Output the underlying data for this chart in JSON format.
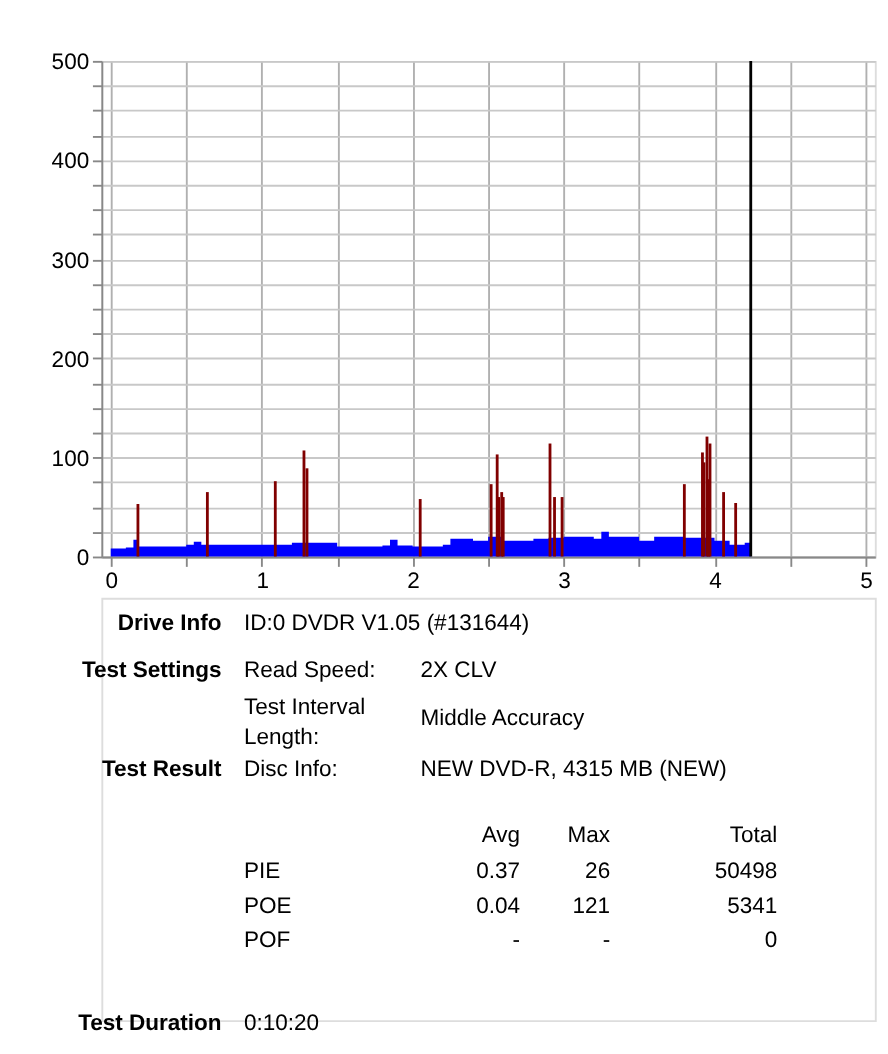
{
  "chart_data": {
    "type": "bar",
    "xlim": [
      0,
      5
    ],
    "ylim": [
      0,
      500
    ],
    "xticks": [
      0,
      {
        "value": 0.5,
        "label": null
      },
      1,
      {
        "value": 1.5,
        "label": null
      },
      2,
      {
        "value": 2.5,
        "label": null
      },
      3,
      {
        "value": 3.5,
        "label": null
      },
      4,
      {
        "value": 4.5,
        "label": null
      },
      5
    ],
    "yticks": [
      0,
      {
        "value": 25,
        "label": null
      },
      {
        "value": 50,
        "label": null
      },
      {
        "value": 75,
        "label": null
      },
      100,
      {
        "value": 125,
        "label": null
      },
      {
        "value": 150,
        "label": null
      },
      {
        "value": 175,
        "label": null
      },
      200,
      {
        "value": 225,
        "label": null
      },
      {
        "value": 250,
        "label": null
      },
      {
        "value": 275,
        "label": null
      },
      300,
      {
        "value": 325,
        "label": null
      },
      {
        "value": 350,
        "label": null
      },
      {
        "value": 375,
        "label": null
      },
      400,
      {
        "value": 425,
        "label": null
      },
      {
        "value": 450,
        "label": null
      },
      {
        "value": 475,
        "label": null
      },
      500
    ],
    "grid": true,
    "series": [
      {
        "type": "area",
        "color": "#0000ff",
        "x": [
          0,
          0.1,
          0.14,
          0.15,
          0.17,
          0.18,
          0.3,
          0.5,
          0.55,
          0.6,
          1.0,
          1.2,
          1.5,
          1.8,
          1.85,
          1.9,
          2.0,
          2.2,
          2.25,
          2.4,
          2.5,
          2.6,
          2.8,
          2.9,
          3.0,
          3.2,
          3.25,
          3.3,
          3.5,
          3.6,
          3.8,
          4.0,
          4.1,
          4.2,
          4.24
        ],
        "values": [
          8,
          9,
          9,
          17,
          17,
          10,
          10,
          12,
          15,
          12,
          12,
          14,
          10,
          11,
          17,
          11,
          10,
          12,
          18,
          16,
          20,
          16,
          18,
          19,
          20,
          18,
          25,
          20,
          16,
          20,
          19,
          16,
          12,
          14,
          17
        ]
      },
      {
        "color": "#800000",
        "x": [
          0.18,
          0.64,
          1.09,
          1.28,
          1.3,
          2.05,
          2.52,
          2.56,
          2.57,
          2.59,
          2.6,
          2.91,
          2.94,
          2.99,
          3.8,
          3.92,
          3.93,
          3.95,
          3.96,
          3.97,
          4.06,
          4.14
        ],
        "values": [
          53,
          65,
          76,
          107,
          89,
          58,
          73,
          103,
          60,
          65,
          60,
          114,
          60,
          60,
          73,
          105,
          95,
          121,
          78,
          114,
          65,
          54
        ]
      }
    ],
    "ref_lines": [
      {
        "axis": "x",
        "value": 4.24,
        "color": "#000000"
      }
    ],
    "annotations": [
      "Drive Info",
      "ID:0 DVDR V1.05 (#131644)",
      "Test Settings",
      "Read Speed:",
      "2X CLV",
      "Test Interval Length:",
      "Middle Accuracy",
      "Test Result",
      "Disc Info:",
      "NEW DVD-R, 4315 MB (NEW)",
      "Avg",
      "Max",
      "Total",
      "PIE",
      "0.37",
      "26",
      "50498",
      "POE",
      "0.04",
      "121",
      "5341",
      "POF",
      "-",
      "-",
      "0",
      "Test Duration",
      "0:10:20"
    ]
  }
}
